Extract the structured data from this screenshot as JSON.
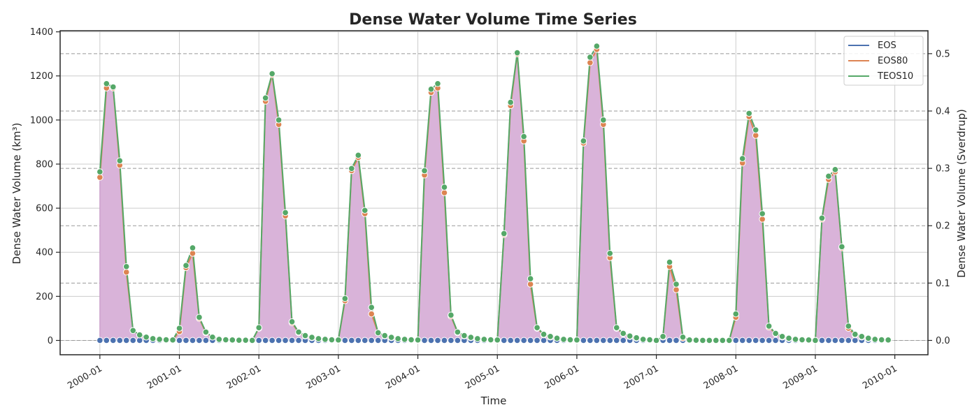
{
  "chart_data": {
    "type": "line",
    "title": "Dense Water Volume Time Series",
    "xlabel": "Time",
    "ylabel": "Dense Water Volume (km³)",
    "ylabel_right": "Dense Water Volume (Sverdrup)",
    "x_start": "2000-01",
    "x_ticks": [
      "2000-01",
      "2001-01",
      "2002-01",
      "2003-01",
      "2004-01",
      "2005-01",
      "2006-01",
      "2007-01",
      "2008-01",
      "2009-01",
      "2010-01"
    ],
    "x_range": [
      "1999-07",
      "2010-06"
    ],
    "ylim": [
      -65,
      1405
    ],
    "y_ticks": [
      0,
      200,
      400,
      600,
      800,
      1000,
      1200,
      1400
    ],
    "ylim_right": [
      -0.025,
      0.54
    ],
    "y_ticks_right": [
      0.0,
      0.1,
      0.2,
      0.3,
      0.4,
      0.5
    ],
    "y_tick_labels_right": [
      "0.0",
      "0.1",
      "0.2",
      "0.3",
      "0.4",
      "0.5"
    ],
    "dashed_h_lines_right": [
      0.0,
      0.1,
      0.2,
      0.3,
      0.4,
      0.5
    ],
    "grid": true,
    "legend_position": "top-right",
    "fill_color": "#d9b3d9",
    "series": [
      {
        "name": "EOS",
        "color": "#4c72b0",
        "values": [
          0,
          0,
          0,
          0,
          0,
          0,
          0,
          0,
          0,
          0,
          0,
          0,
          0,
          0,
          0,
          0,
          0,
          0,
          0,
          0,
          0,
          0,
          0,
          0,
          0,
          0,
          0,
          0,
          0,
          0,
          0,
          0,
          0,
          0,
          0,
          0,
          0,
          0,
          0,
          0,
          0,
          0,
          0,
          0,
          0,
          0,
          0,
          0,
          0,
          0,
          0,
          0,
          0,
          0,
          0,
          0,
          0,
          0,
          0,
          0,
          0,
          0,
          0,
          0,
          0,
          0,
          0,
          0,
          0,
          0,
          0,
          0,
          0,
          0,
          0,
          0,
          0,
          0,
          0,
          0,
          0,
          0,
          0,
          0,
          0,
          0,
          0,
          0,
          0,
          0,
          0,
          0,
          0,
          0,
          0,
          0,
          0,
          0,
          0,
          0,
          0,
          0,
          0,
          0,
          0,
          0,
          0,
          0,
          0,
          0,
          0,
          0,
          0,
          0,
          0,
          0,
          0,
          0,
          0,
          0
        ]
      },
      {
        "name": "EOS80",
        "color": "#dd8452",
        "values": [
          740,
          1145,
          1145,
          795,
          310,
          45,
          25,
          15,
          8,
          5,
          3,
          2,
          40,
          330,
          395,
          100,
          35,
          15,
          5,
          3,
          2,
          1,
          1,
          0,
          55,
          1085,
          1205,
          980,
          565,
          80,
          35,
          20,
          12,
          8,
          5,
          3,
          2,
          180,
          770,
          830,
          575,
          120,
          35,
          20,
          12,
          8,
          5,
          3,
          2,
          750,
          1125,
          1145,
          670,
          110,
          35,
          20,
          12,
          8,
          5,
          3,
          2,
          480,
          1065,
          1300,
          905,
          255,
          55,
          25,
          15,
          10,
          5,
          3,
          2,
          895,
          1260,
          1320,
          980,
          375,
          55,
          30,
          18,
          10,
          5,
          3,
          0,
          15,
          335,
          230,
          10,
          2,
          1,
          0,
          0,
          0,
          0,
          0,
          105,
          805,
          1015,
          930,
          550,
          60,
          30,
          15,
          8,
          5,
          3,
          2,
          0,
          550,
          730,
          765,
          420,
          55,
          25,
          15,
          8,
          5,
          3,
          2
        ]
      },
      {
        "name": "TEOS10",
        "color": "#55a868",
        "values": [
          765,
          1165,
          1150,
          815,
          335,
          45,
          25,
          15,
          8,
          5,
          3,
          2,
          55,
          340,
          420,
          105,
          38,
          15,
          5,
          3,
          2,
          1,
          1,
          0,
          58,
          1100,
          1210,
          1000,
          580,
          85,
          38,
          22,
          14,
          8,
          5,
          3,
          2,
          190,
          780,
          840,
          590,
          150,
          35,
          22,
          14,
          8,
          5,
          3,
          2,
          770,
          1140,
          1165,
          695,
          115,
          38,
          22,
          14,
          8,
          5,
          3,
          2,
          485,
          1080,
          1305,
          925,
          280,
          58,
          28,
          18,
          10,
          5,
          3,
          2,
          905,
          1285,
          1335,
          1000,
          395,
          58,
          32,
          20,
          12,
          5,
          3,
          0,
          18,
          355,
          255,
          15,
          2,
          1,
          0,
          0,
          0,
          0,
          0,
          120,
          825,
          1030,
          955,
          575,
          65,
          32,
          18,
          10,
          5,
          3,
          2,
          0,
          555,
          745,
          775,
          425,
          65,
          28,
          18,
          10,
          5,
          3,
          2
        ]
      }
    ]
  }
}
